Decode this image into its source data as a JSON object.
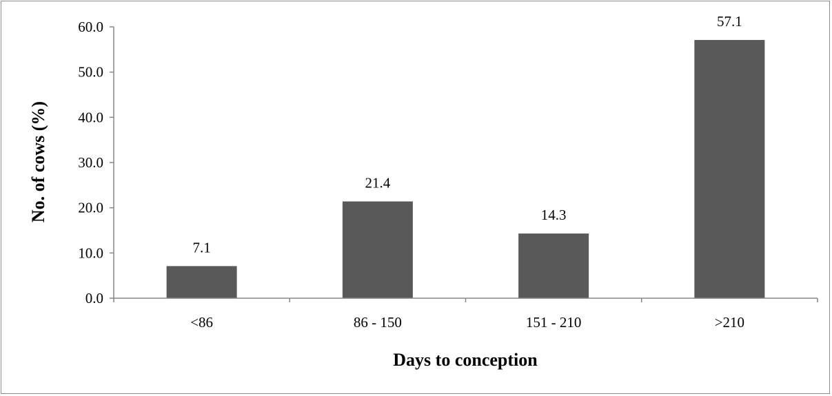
{
  "chart_data": {
    "type": "bar",
    "categories": [
      "<86",
      "86 - 150",
      "151 - 210",
      ">210"
    ],
    "values": [
      7.1,
      21.4,
      14.3,
      57.1
    ],
    "data_labels": [
      "7.1",
      "21.4",
      "14.3",
      "57.1"
    ],
    "title": "",
    "xlabel": "Days to conception",
    "ylabel": "No. of cows (%)",
    "ylim": [
      0,
      60
    ],
    "yticks": [
      0,
      10,
      20,
      30,
      40,
      50,
      60
    ],
    "ytick_labels": [
      "0.0",
      "10.0",
      "20.0",
      "30.0",
      "40.0",
      "50.0",
      "60.0"
    ],
    "grid": false,
    "legend": "none",
    "bar_color": "#595959",
    "axis_color": "#868686"
  }
}
